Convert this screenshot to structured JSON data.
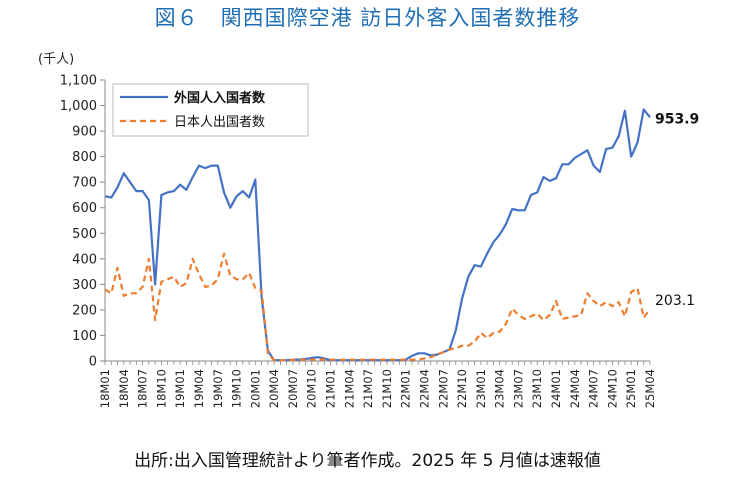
{
  "chart_data": {
    "type": "line",
    "title": "図６　関西国際空港  訪日外客入国者数推移",
    "ylabel_unit": "(千人)",
    "source_note": "出所:出入国管理統計より筆者作成。2025 年 5 月値は速報値",
    "ylim": [
      0,
      1100
    ],
    "yticks": [
      "0",
      "100",
      "200",
      "300",
      "400",
      "500",
      "600",
      "700",
      "800",
      "900",
      "1,000",
      "1,100"
    ],
    "grid": false,
    "legend_position": "top-left",
    "x_tick_labels": [
      "18M01",
      "18M04",
      "18M07",
      "18M10",
      "19M01",
      "19M04",
      "19M07",
      "19M10",
      "20M01",
      "20M04",
      "20M07",
      "20M10",
      "21M01",
      "21M04",
      "21M07",
      "21M10",
      "22M01",
      "22M04",
      "22M07",
      "22M10",
      "23M01",
      "23M04",
      "23M07",
      "23M10",
      "24M01",
      "24M04",
      "24M07",
      "24M10",
      "25M01",
      "25M04"
    ],
    "series": [
      {
        "name": "外国人入国者数",
        "color": "#4472c4",
        "style": "solid",
        "end_label": "953.9",
        "values": [
          645,
          640,
          680,
          735,
          700,
          665,
          665,
          630,
          300,
          650,
          660,
          665,
          690,
          670,
          720,
          765,
          755,
          765,
          765,
          660,
          600,
          645,
          665,
          640,
          710,
          250,
          40,
          3,
          3,
          3,
          5,
          6,
          8,
          12,
          15,
          10,
          3,
          3,
          3,
          3,
          3,
          3,
          3,
          3,
          3,
          3,
          3,
          3,
          5,
          20,
          30,
          30,
          22,
          25,
          35,
          45,
          120,
          245,
          330,
          375,
          370,
          420,
          465,
          495,
          535,
          595,
          590,
          590,
          650,
          660,
          720,
          705,
          715,
          770,
          770,
          795,
          810,
          825,
          765,
          740,
          830,
          835,
          880,
          980,
          800,
          855,
          985,
          953.9
        ]
      },
      {
        "name": "日本人出国者数",
        "color": "#ed7d31",
        "style": "dashed",
        "end_label": "203.1",
        "values": [
          280,
          265,
          365,
          255,
          265,
          265,
          290,
          400,
          160,
          310,
          320,
          330,
          290,
          305,
          400,
          340,
          290,
          295,
          320,
          420,
          335,
          320,
          320,
          345,
          285,
          275,
          30,
          3,
          3,
          3,
          4,
          5,
          5,
          5,
          6,
          6,
          5,
          5,
          5,
          5,
          5,
          5,
          5,
          5,
          5,
          5,
          5,
          5,
          5,
          5,
          6,
          10,
          15,
          25,
          35,
          45,
          50,
          60,
          60,
          75,
          110,
          90,
          110,
          115,
          145,
          205,
          180,
          165,
          175,
          185,
          160,
          180,
          235,
          165,
          170,
          175,
          180,
          265,
          235,
          215,
          230,
          215,
          230,
          175,
          270,
          285,
          170,
          203.1
        ]
      }
    ]
  }
}
